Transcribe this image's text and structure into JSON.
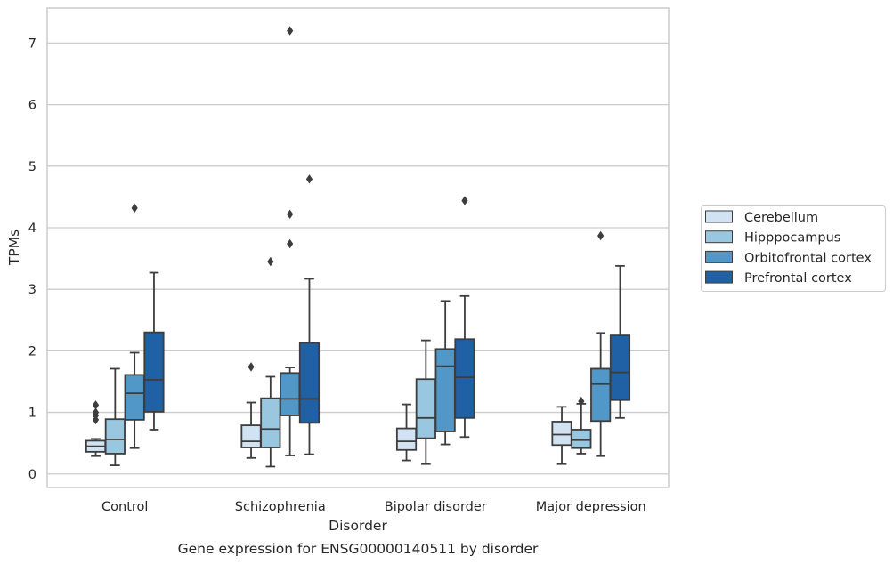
{
  "chart_data": {
    "type": "box",
    "title": "",
    "caption": "Gene expression for ENSG00000140511 by disorder",
    "xlabel": "Disorder",
    "ylabel": "TPMs",
    "ylim": [
      -0.22,
      7.57
    ],
    "yticks": [
      0,
      1,
      2,
      3,
      4,
      5,
      6,
      7
    ],
    "grid": "horizontal",
    "legend_position": "right",
    "categories": [
      "Control",
      "Schizophrenia",
      "Bipolar disorder",
      "Major depression"
    ],
    "series": [
      {
        "name": "Cerebellum",
        "color": "#d1e2f2",
        "boxes": [
          {
            "whislo": 0.29,
            "q1": 0.36,
            "med": 0.45,
            "q3": 0.54,
            "whishi": 0.57,
            "fliers": [
              0.88,
              0.95,
              1.0,
              1.12
            ]
          },
          {
            "whislo": 0.26,
            "q1": 0.43,
            "med": 0.53,
            "q3": 0.79,
            "whishi": 1.16,
            "fliers": [
              1.74
            ]
          },
          {
            "whislo": 0.22,
            "q1": 0.39,
            "med": 0.53,
            "q3": 0.74,
            "whishi": 1.13,
            "fliers": []
          },
          {
            "whislo": 0.16,
            "q1": 0.47,
            "med": 0.64,
            "q3": 0.85,
            "whishi": 1.09,
            "fliers": []
          }
        ]
      },
      {
        "name": "Hipppocampus",
        "color": "#9ac7e0",
        "boxes": [
          {
            "whislo": 0.14,
            "q1": 0.33,
            "med": 0.56,
            "q3": 0.89,
            "whishi": 1.71,
            "fliers": []
          },
          {
            "whislo": 0.12,
            "q1": 0.43,
            "med": 0.73,
            "q3": 1.23,
            "whishi": 1.58,
            "fliers": [
              3.45
            ]
          },
          {
            "whislo": 0.16,
            "q1": 0.58,
            "med": 0.91,
            "q3": 1.54,
            "whishi": 2.17,
            "fliers": []
          },
          {
            "whislo": 0.33,
            "q1": 0.42,
            "med": 0.55,
            "q3": 0.72,
            "whishi": 1.14,
            "fliers": [
              1.18
            ]
          }
        ]
      },
      {
        "name": "Orbitofrontal cortex",
        "color": "#5197c8",
        "boxes": [
          {
            "whislo": 0.42,
            "q1": 0.88,
            "med": 1.31,
            "q3": 1.61,
            "whishi": 1.97,
            "fliers": [
              4.32
            ]
          },
          {
            "whislo": 0.3,
            "q1": 0.95,
            "med": 1.22,
            "q3": 1.64,
            "whishi": 1.73,
            "fliers": [
              3.74,
              4.22,
              7.2
            ]
          },
          {
            "whislo": 0.48,
            "q1": 0.69,
            "med": 1.75,
            "q3": 2.03,
            "whishi": 2.81,
            "fliers": []
          },
          {
            "whislo": 0.29,
            "q1": 0.86,
            "med": 1.46,
            "q3": 1.71,
            "whishi": 2.29,
            "fliers": [
              3.87
            ]
          }
        ]
      },
      {
        "name": "Prefrontal cortex",
        "color": "#2060a4",
        "boxes": [
          {
            "whislo": 0.72,
            "q1": 1.01,
            "med": 1.53,
            "q3": 2.3,
            "whishi": 3.27,
            "fliers": []
          },
          {
            "whislo": 0.32,
            "q1": 0.83,
            "med": 1.22,
            "q3": 2.13,
            "whishi": 3.17,
            "fliers": [
              4.79
            ]
          },
          {
            "whislo": 0.6,
            "q1": 0.91,
            "med": 1.57,
            "q3": 2.19,
            "whishi": 2.89,
            "fliers": [
              4.44
            ]
          },
          {
            "whislo": 0.91,
            "q1": 1.2,
            "med": 1.65,
            "q3": 2.25,
            "whishi": 3.38,
            "fliers": []
          }
        ]
      }
    ]
  }
}
